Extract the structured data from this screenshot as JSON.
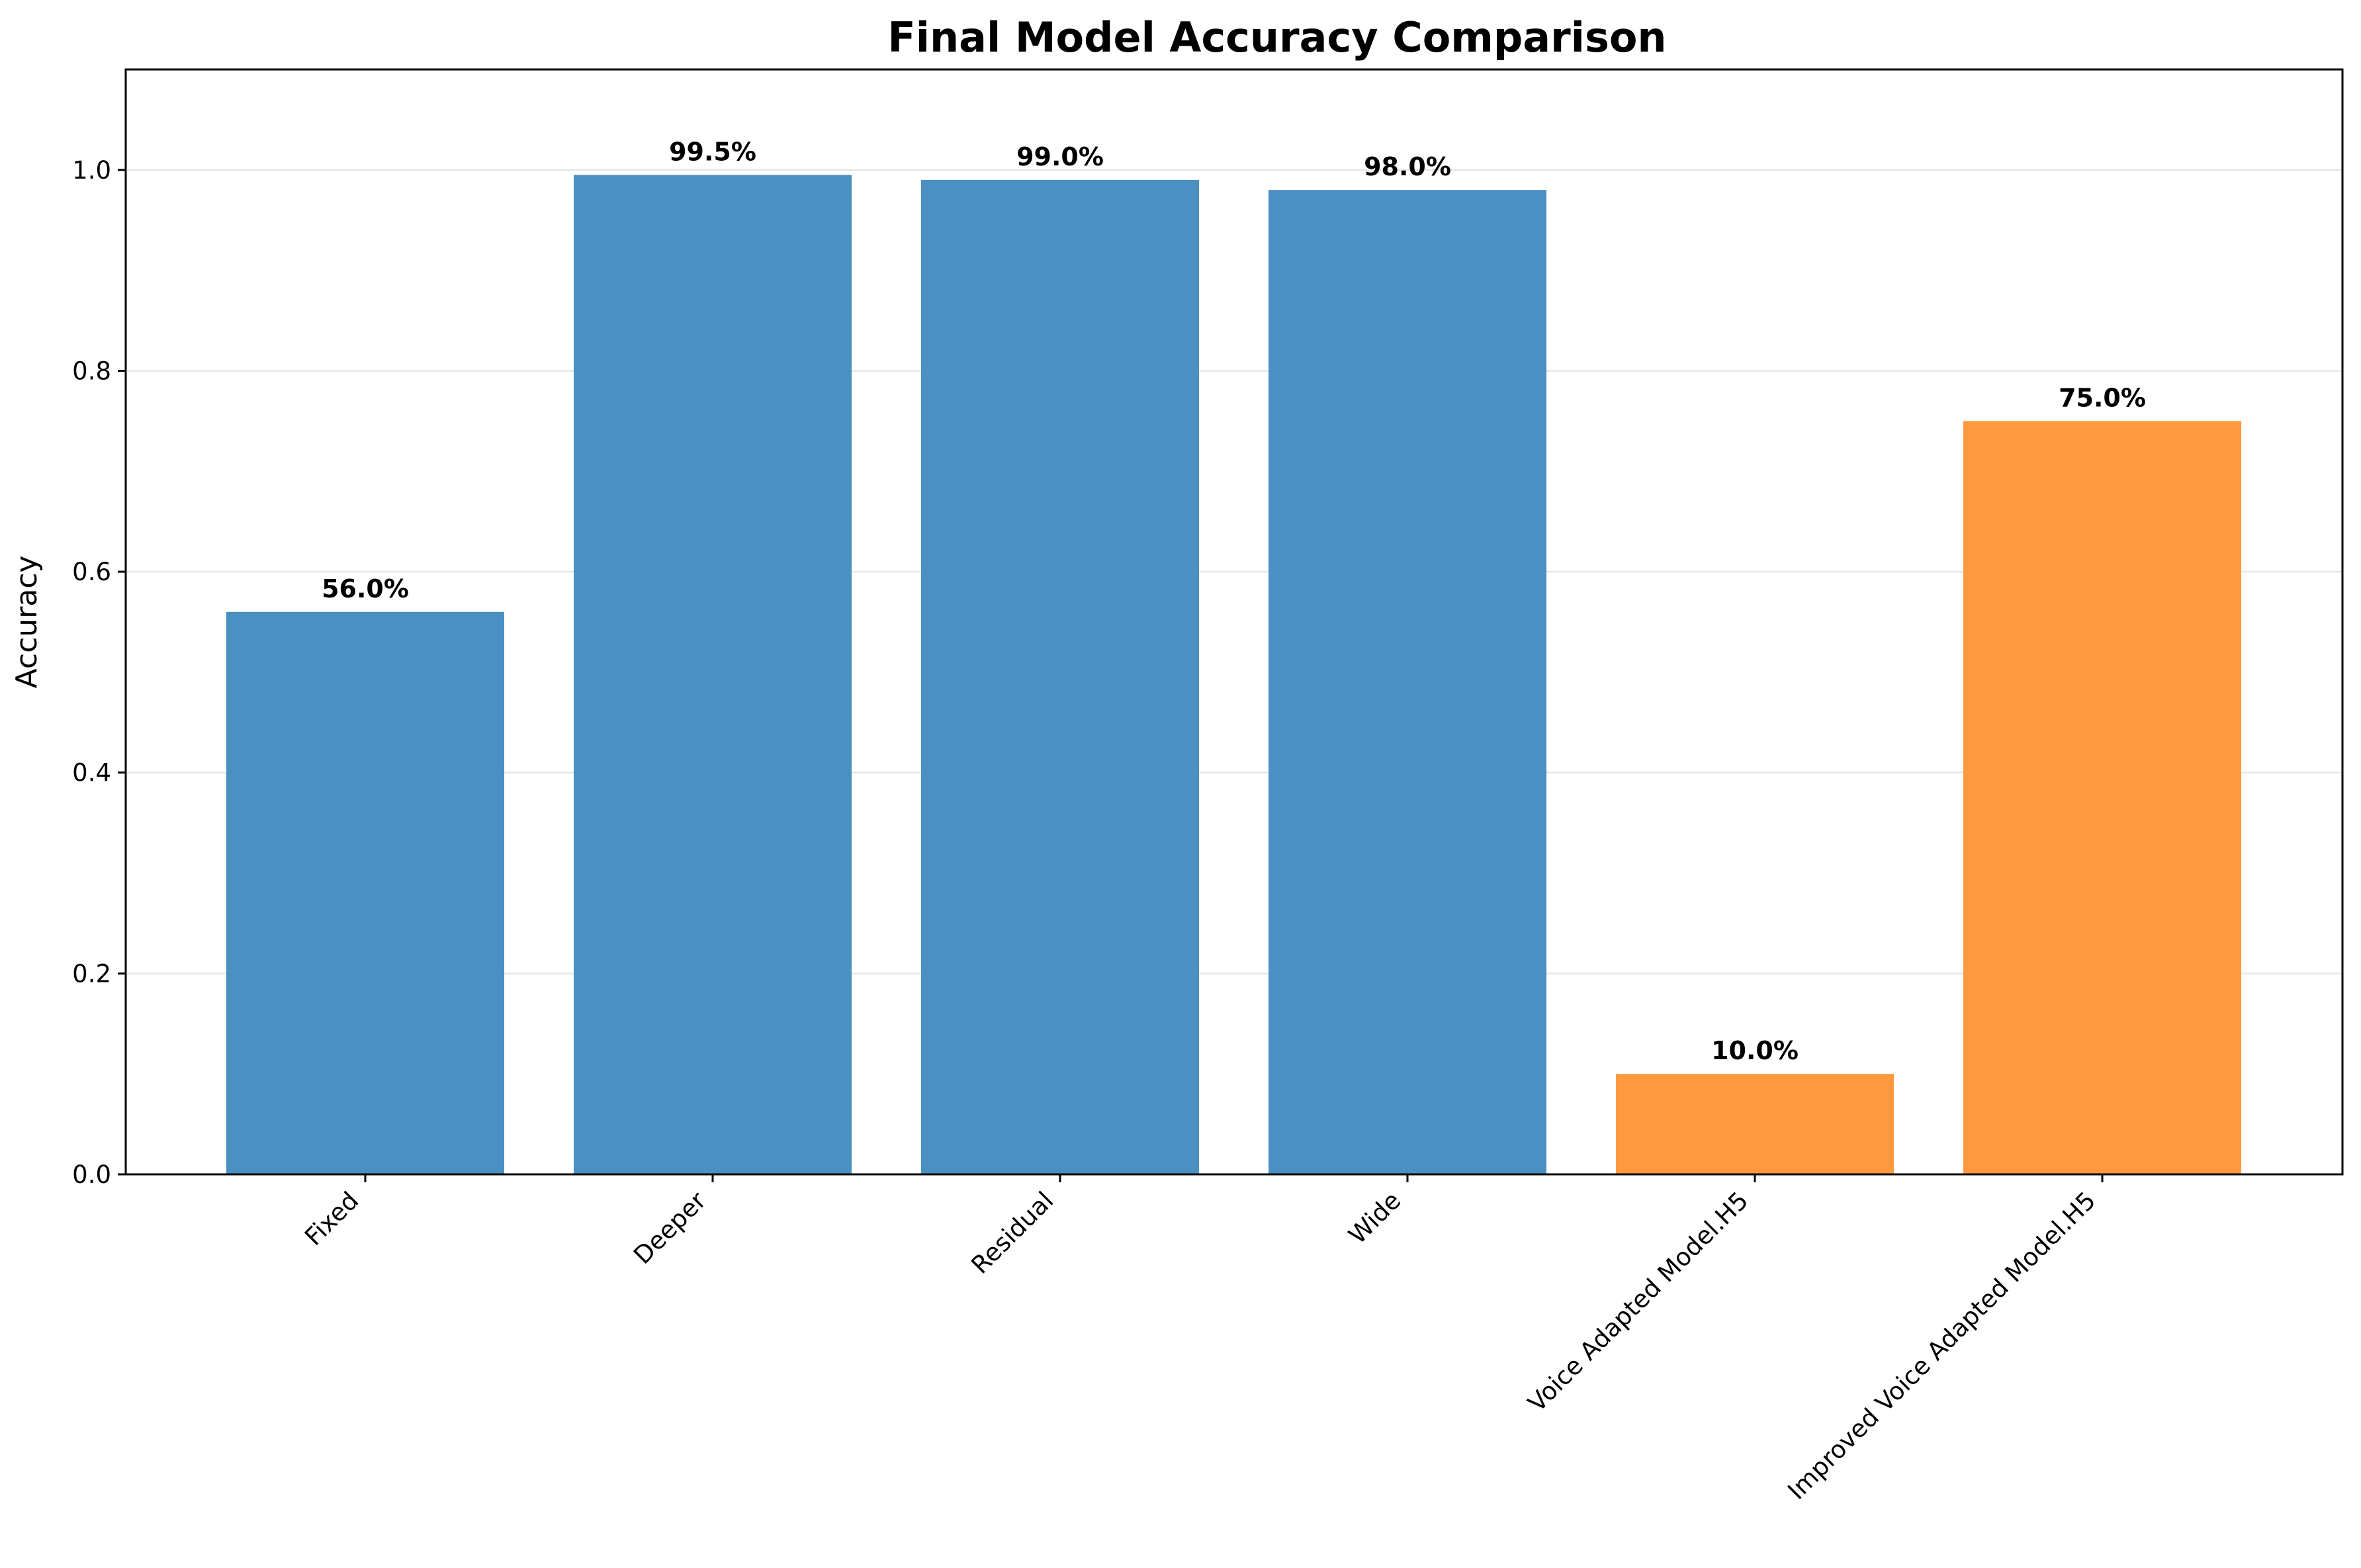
{
  "chart_data": {
    "type": "bar",
    "title": "Final Model Accuracy Comparison",
    "xlabel": "",
    "ylabel": "Accuracy",
    "ylim": [
      0,
      1.1
    ],
    "yticks": [
      0.0,
      0.2,
      0.4,
      0.6,
      0.8,
      1.0
    ],
    "ytick_labels": [
      "0.0",
      "0.2",
      "0.4",
      "0.6",
      "0.8",
      "1.0"
    ],
    "grid": "y-axis, light gray",
    "categories": [
      "Fixed",
      "Deeper",
      "Residual",
      "Wide",
      "Voice Adapted Model.H5",
      "Improved Voice Adapted Model.H5"
    ],
    "values": [
      0.56,
      0.995,
      0.99,
      0.98,
      0.1,
      0.75
    ],
    "data_labels": [
      "56.0%",
      "99.5%",
      "99.0%",
      "98.0%",
      "10.0%",
      "75.0%"
    ],
    "bar_colors": [
      "#4a90c2",
      "#4a90c2",
      "#4a90c2",
      "#4a90c2",
      "#ff9940",
      "#ff9940"
    ]
  }
}
